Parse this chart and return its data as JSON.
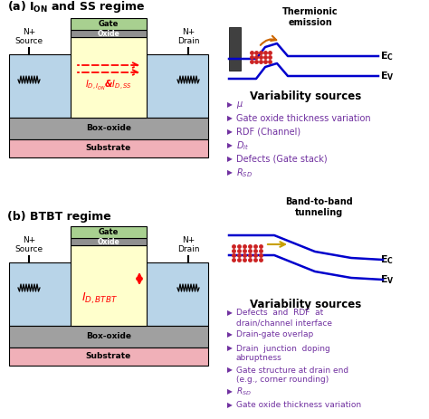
{
  "bg_color": "#ffffff",
  "mosfet_body_color": "#b8d4e8",
  "channel_color": "#ffffcc",
  "gate_color": "#a8d090",
  "oxide_color": "#909090",
  "boxoxide_color": "#a0a0a0",
  "substrate_color": "#f0b0b8",
  "current_color": "#ff0000",
  "text_color_purple": "#7030a0",
  "text_color_black": "#000000",
  "energy_line_color": "#0000cc",
  "arrow_color": "#cc8800",
  "var_sources_a": [
    "$\\mu$",
    "Gate oxide thickness variation",
    "RDF (Channel)",
    "$D_{it}$",
    "Defects (Gate stack)",
    "$R_{SD}$"
  ],
  "var_sources_b": [
    "Defects  and  RDF  at",
    "drain/channel interface",
    "Drain-gate overlap",
    "Drain  junction  doping",
    "abruptness",
    "Gate structure at drain end",
    "(e.g., corner rounding)",
    "$R_{SD}$",
    "Gate oxide thickness variation"
  ]
}
